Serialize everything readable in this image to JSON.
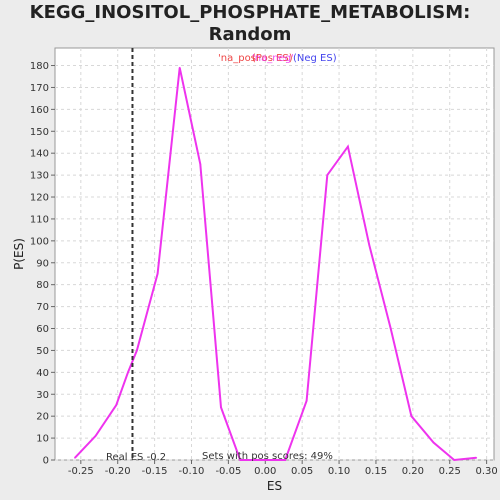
{
  "title": "KEGG_INOSITOL_PHOSPHATE_METABOLISM: Random\nES distribution",
  "chart_data": {
    "type": "line",
    "xlabel": "ES",
    "ylabel": "P(ES)",
    "xlim": [
      -0.285,
      0.31
    ],
    "ylim": [
      0,
      188
    ],
    "xticks": [
      "-0.25",
      "-0.20",
      "-0.15",
      "-0.10",
      "-0.05",
      "0.00",
      "0.05",
      "0.10",
      "0.15",
      "0.20",
      "0.25",
      "0.30"
    ],
    "xtick_values": [
      -0.25,
      -0.2,
      -0.15,
      -0.1,
      -0.05,
      0.0,
      0.05,
      0.1,
      0.15,
      0.2,
      0.25,
      0.3
    ],
    "yticks": [
      0,
      10,
      20,
      30,
      40,
      50,
      60,
      70,
      80,
      90,
      100,
      110,
      120,
      130,
      140,
      150,
      160,
      170,
      180
    ],
    "grid": true,
    "series": [
      {
        "color": "#ee33ee",
        "points": [
          [
            -0.258,
            1
          ],
          [
            -0.23,
            11
          ],
          [
            -0.202,
            25
          ],
          [
            -0.186,
            40
          ],
          [
            -0.174,
            50
          ],
          [
            -0.146,
            85
          ],
          [
            -0.116,
            179
          ],
          [
            -0.088,
            135
          ],
          [
            -0.06,
            24
          ],
          [
            -0.034,
            0
          ],
          [
            -0.004,
            0
          ],
          [
            0.027,
            0
          ],
          [
            0.056,
            27
          ],
          [
            0.084,
            130
          ],
          [
            0.112,
            143
          ],
          [
            0.141,
            98
          ],
          [
            0.17,
            60
          ],
          [
            0.198,
            20
          ],
          [
            0.228,
            8
          ],
          [
            0.256,
            0
          ],
          [
            0.286,
            1
          ]
        ]
      }
    ],
    "legend": [
      {
        "text": "'na_pos'",
        "color": "#ee4444"
      },
      {
        "text": "(Pos ES)",
        "color": "#ee4444"
      },
      {
        "text": "'na_neg'",
        "color": "#ee33ee"
      },
      {
        "text": "(Neg ES)",
        "color": "#4444ee"
      }
    ],
    "real_es": {
      "value": -0.18,
      "label": "Real ES -0.2"
    },
    "annotation": "Sets with pos scores: 49%"
  }
}
